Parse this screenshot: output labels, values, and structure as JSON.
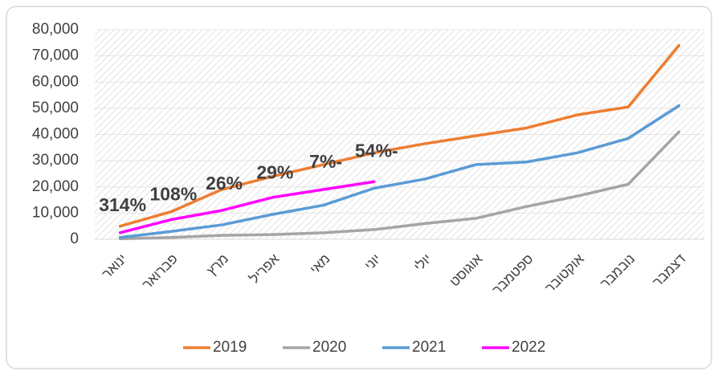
{
  "chart_data": {
    "type": "line",
    "categories": [
      "ינואר",
      "פברואר",
      "מרץ",
      "אפריל",
      "מאי",
      "יוני",
      "יולי",
      "אוגוסט",
      "ספטמבר",
      "אוקטובר",
      "נובמבר",
      "דצמבר"
    ],
    "series": [
      {
        "name": "2019",
        "color": "#ed7d31",
        "values": [
          5000,
          10500,
          19000,
          24000,
          28500,
          33000,
          36500,
          39500,
          42500,
          47500,
          50500,
          74000
        ]
      },
      {
        "name": "2020",
        "color": "#a5a5a5",
        "values": [
          200,
          700,
          1500,
          1800,
          2500,
          3700,
          6000,
          8000,
          12500,
          16500,
          21000,
          41000
        ]
      },
      {
        "name": "2021",
        "color": "#5b9bd5",
        "values": [
          700,
          3000,
          5500,
          9500,
          13000,
          19500,
          23000,
          28500,
          29500,
          33000,
          38500,
          51000
        ]
      },
      {
        "name": "2022",
        "color": "#ff00ff",
        "values": [
          2500,
          7500,
          11000,
          16000,
          19000,
          22000,
          null,
          null,
          null,
          null,
          null,
          null
        ]
      }
    ],
    "annotations": [
      "314%",
      "108%",
      "26%",
      "29%",
      "7%-",
      "54%-"
    ],
    "ylim": [
      0,
      80000
    ],
    "yticks": [
      0,
      {
        "value": 10000,
        "label": "10,000"
      },
      {
        "value": 20000,
        "label": "20,000"
      },
      {
        "value": 30000,
        "label": "30,000"
      },
      {
        "value": 40000,
        "label": "40,000"
      },
      {
        "value": 50000,
        "label": "50,000"
      },
      {
        "value": 60000,
        "label": "60,000"
      },
      {
        "value": 70000,
        "label": "70,000"
      },
      {
        "value": 80000,
        "label": "80,000"
      }
    ],
    "grid": true,
    "legend": "bottom"
  }
}
